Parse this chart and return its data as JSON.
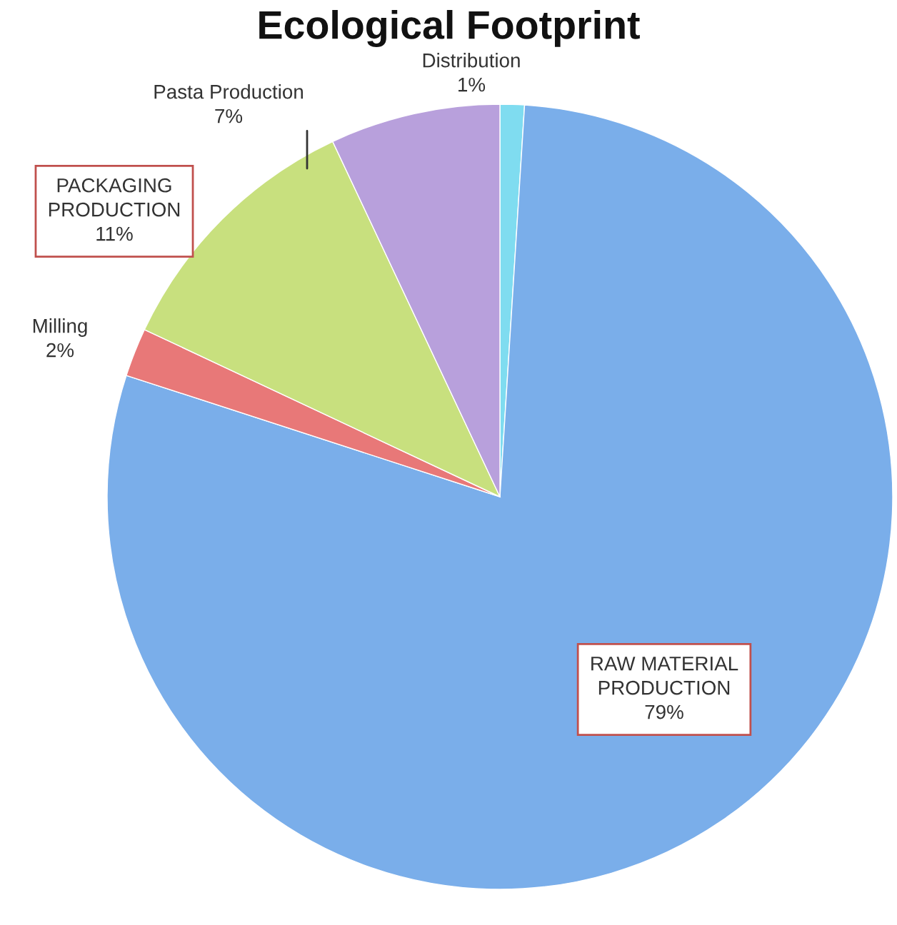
{
  "chart_data": {
    "type": "pie",
    "title": "Ecological Footprint",
    "categories": [
      "Distribution",
      "RAW MATERIAL PRODUCTION",
      "Milling",
      "PACKAGING PRODUCTION",
      "Pasta Production"
    ],
    "values": [
      1,
      79,
      2,
      11,
      7
    ],
    "value_labels": [
      "1%",
      "79%",
      "2%",
      "11%",
      "7%"
    ],
    "colors": [
      "#7fdcf0",
      "#7aaeea",
      "#e87878",
      "#c8e07e",
      "#b8a0dc"
    ]
  }
}
